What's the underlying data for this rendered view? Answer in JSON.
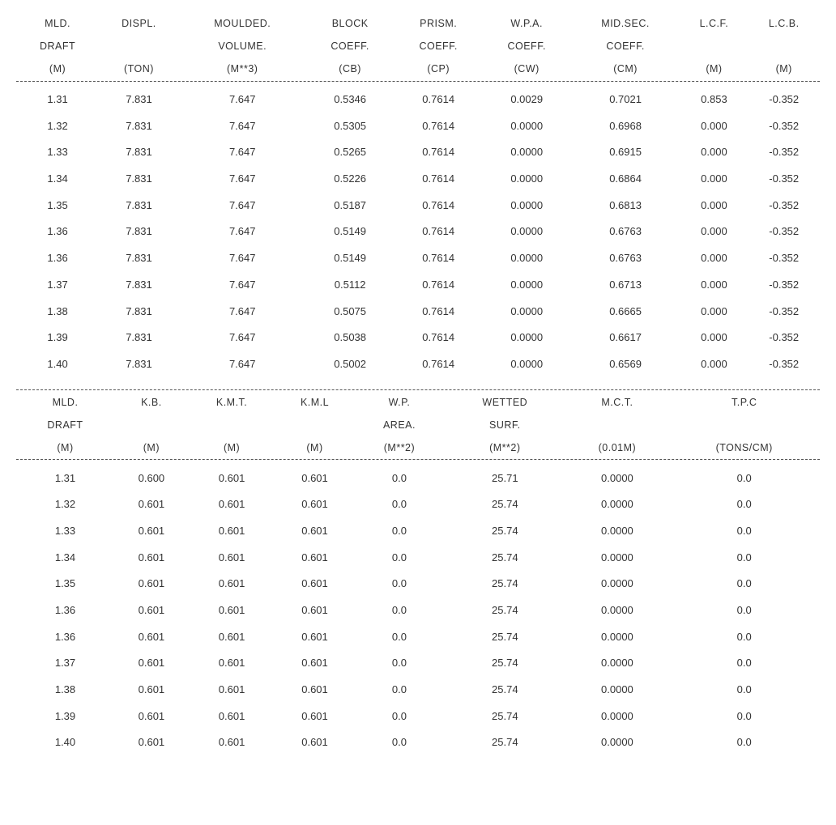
{
  "page": {
    "background_color": "#ffffff",
    "text_color": "#333333",
    "font_family": "Arial, sans-serif",
    "dash_color": "#555555"
  },
  "table1": {
    "headers": [
      {
        "line1": "MLD.",
        "line2": "DRAFT",
        "line3": "(M)"
      },
      {
        "line1": "DISPL.",
        "line2": "",
        "line3": "(TON)"
      },
      {
        "line1": "MOULDED.",
        "line2": "VOLUME.",
        "line3": "(M**3)"
      },
      {
        "line1": "BLOCK",
        "line2": "COEFF.",
        "line3": "(CB)"
      },
      {
        "line1": "PRISM.",
        "line2": "COEFF.",
        "line3": "(CP)"
      },
      {
        "line1": "W.P.A.",
        "line2": "COEFF.",
        "line3": "(CW)"
      },
      {
        "line1": "MID.SEC.",
        "line2": "COEFF.",
        "line3": "(CM)"
      },
      {
        "line1": "L.C.F.",
        "line2": "",
        "line3": "(M)"
      },
      {
        "line1": "L.C.B.",
        "line2": "",
        "line3": "(M)"
      }
    ],
    "rows": [
      [
        "1.31",
        "7.831",
        "7.647",
        "0.5346",
        "0.7614",
        "0.0029",
        "0.7021",
        "0.853",
        "-0.352"
      ],
      [
        "1.32",
        "7.831",
        "7.647",
        "0.5305",
        "0.7614",
        "0.0000",
        "0.6968",
        "0.000",
        "-0.352"
      ],
      [
        "1.33",
        "7.831",
        "7.647",
        "0.5265",
        "0.7614",
        "0.0000",
        "0.6915",
        "0.000",
        "-0.352"
      ],
      [
        "1.34",
        "7.831",
        "7.647",
        "0.5226",
        "0.7614",
        "0.0000",
        "0.6864",
        "0.000",
        "-0.352"
      ],
      [
        "1.35",
        "7.831",
        "7.647",
        "0.5187",
        "0.7614",
        "0.0000",
        "0.6813",
        "0.000",
        "-0.352"
      ],
      [
        "1.36",
        "7.831",
        "7.647",
        "0.5149",
        "0.7614",
        "0.0000",
        "0.6763",
        "0.000",
        "-0.352"
      ],
      [
        "1.36",
        "7.831",
        "7.647",
        "0.5149",
        "0.7614",
        "0.0000",
        "0.6763",
        "0.000",
        "-0.352"
      ],
      [
        "1.37",
        "7.831",
        "7.647",
        "0.5112",
        "0.7614",
        "0.0000",
        "0.6713",
        "0.000",
        "-0.352"
      ],
      [
        "1.38",
        "7.831",
        "7.647",
        "0.5075",
        "0.7614",
        "0.0000",
        "0.6665",
        "0.000",
        "-0.352"
      ],
      [
        "1.39",
        "7.831",
        "7.647",
        "0.5038",
        "0.7614",
        "0.0000",
        "0.6617",
        "0.000",
        "-0.352"
      ],
      [
        "1.40",
        "7.831",
        "7.647",
        "0.5002",
        "0.7614",
        "0.0000",
        "0.6569",
        "0.000",
        "-0.352"
      ]
    ]
  },
  "table2": {
    "headers": [
      {
        "line1": "MLD.",
        "line2": "DRAFT",
        "line3": "(M)"
      },
      {
        "line1": "K.B.",
        "line2": "",
        "line3": "(M)"
      },
      {
        "line1": "K.M.T.",
        "line2": "",
        "line3": "(M)"
      },
      {
        "line1": "K.M.L",
        "line2": "",
        "line3": "(M)"
      },
      {
        "line1": "W.P.",
        "line2": "AREA.",
        "line3": "(M**2)"
      },
      {
        "line1": "WETTED",
        "line2": "SURF.",
        "line3": "(M**2)"
      },
      {
        "line1": "M.C.T.",
        "line2": "",
        "line3": "(0.01M)"
      },
      {
        "line1": "T.P.C",
        "line2": "",
        "line3": "(TONS/CM)"
      }
    ],
    "rows": [
      [
        "1.31",
        "0.600",
        "0.601",
        "0.601",
        "0.0",
        "25.71",
        "0.0000",
        "0.0"
      ],
      [
        "1.32",
        "0.601",
        "0.601",
        "0.601",
        "0.0",
        "25.74",
        "0.0000",
        "0.0"
      ],
      [
        "1.33",
        "0.601",
        "0.601",
        "0.601",
        "0.0",
        "25.74",
        "0.0000",
        "0.0"
      ],
      [
        "1.34",
        "0.601",
        "0.601",
        "0.601",
        "0.0",
        "25.74",
        "0.0000",
        "0.0"
      ],
      [
        "1.35",
        "0.601",
        "0.601",
        "0.601",
        "0.0",
        "25.74",
        "0.0000",
        "0.0"
      ],
      [
        "1.36",
        "0.601",
        "0.601",
        "0.601",
        "0.0",
        "25.74",
        "0.0000",
        "0.0"
      ],
      [
        "1.36",
        "0.601",
        "0.601",
        "0.601",
        "0.0",
        "25.74",
        "0.0000",
        "0.0"
      ],
      [
        "1.37",
        "0.601",
        "0.601",
        "0.601",
        "0.0",
        "25.74",
        "0.0000",
        "0.0"
      ],
      [
        "1.38",
        "0.601",
        "0.601",
        "0.601",
        "0.0",
        "25.74",
        "0.0000",
        "0.0"
      ],
      [
        "1.39",
        "0.601",
        "0.601",
        "0.601",
        "0.0",
        "25.74",
        "0.0000",
        "0.0"
      ],
      [
        "1.40",
        "0.601",
        "0.601",
        "0.601",
        "0.0",
        "25.74",
        "0.0000",
        "0.0"
      ]
    ]
  }
}
